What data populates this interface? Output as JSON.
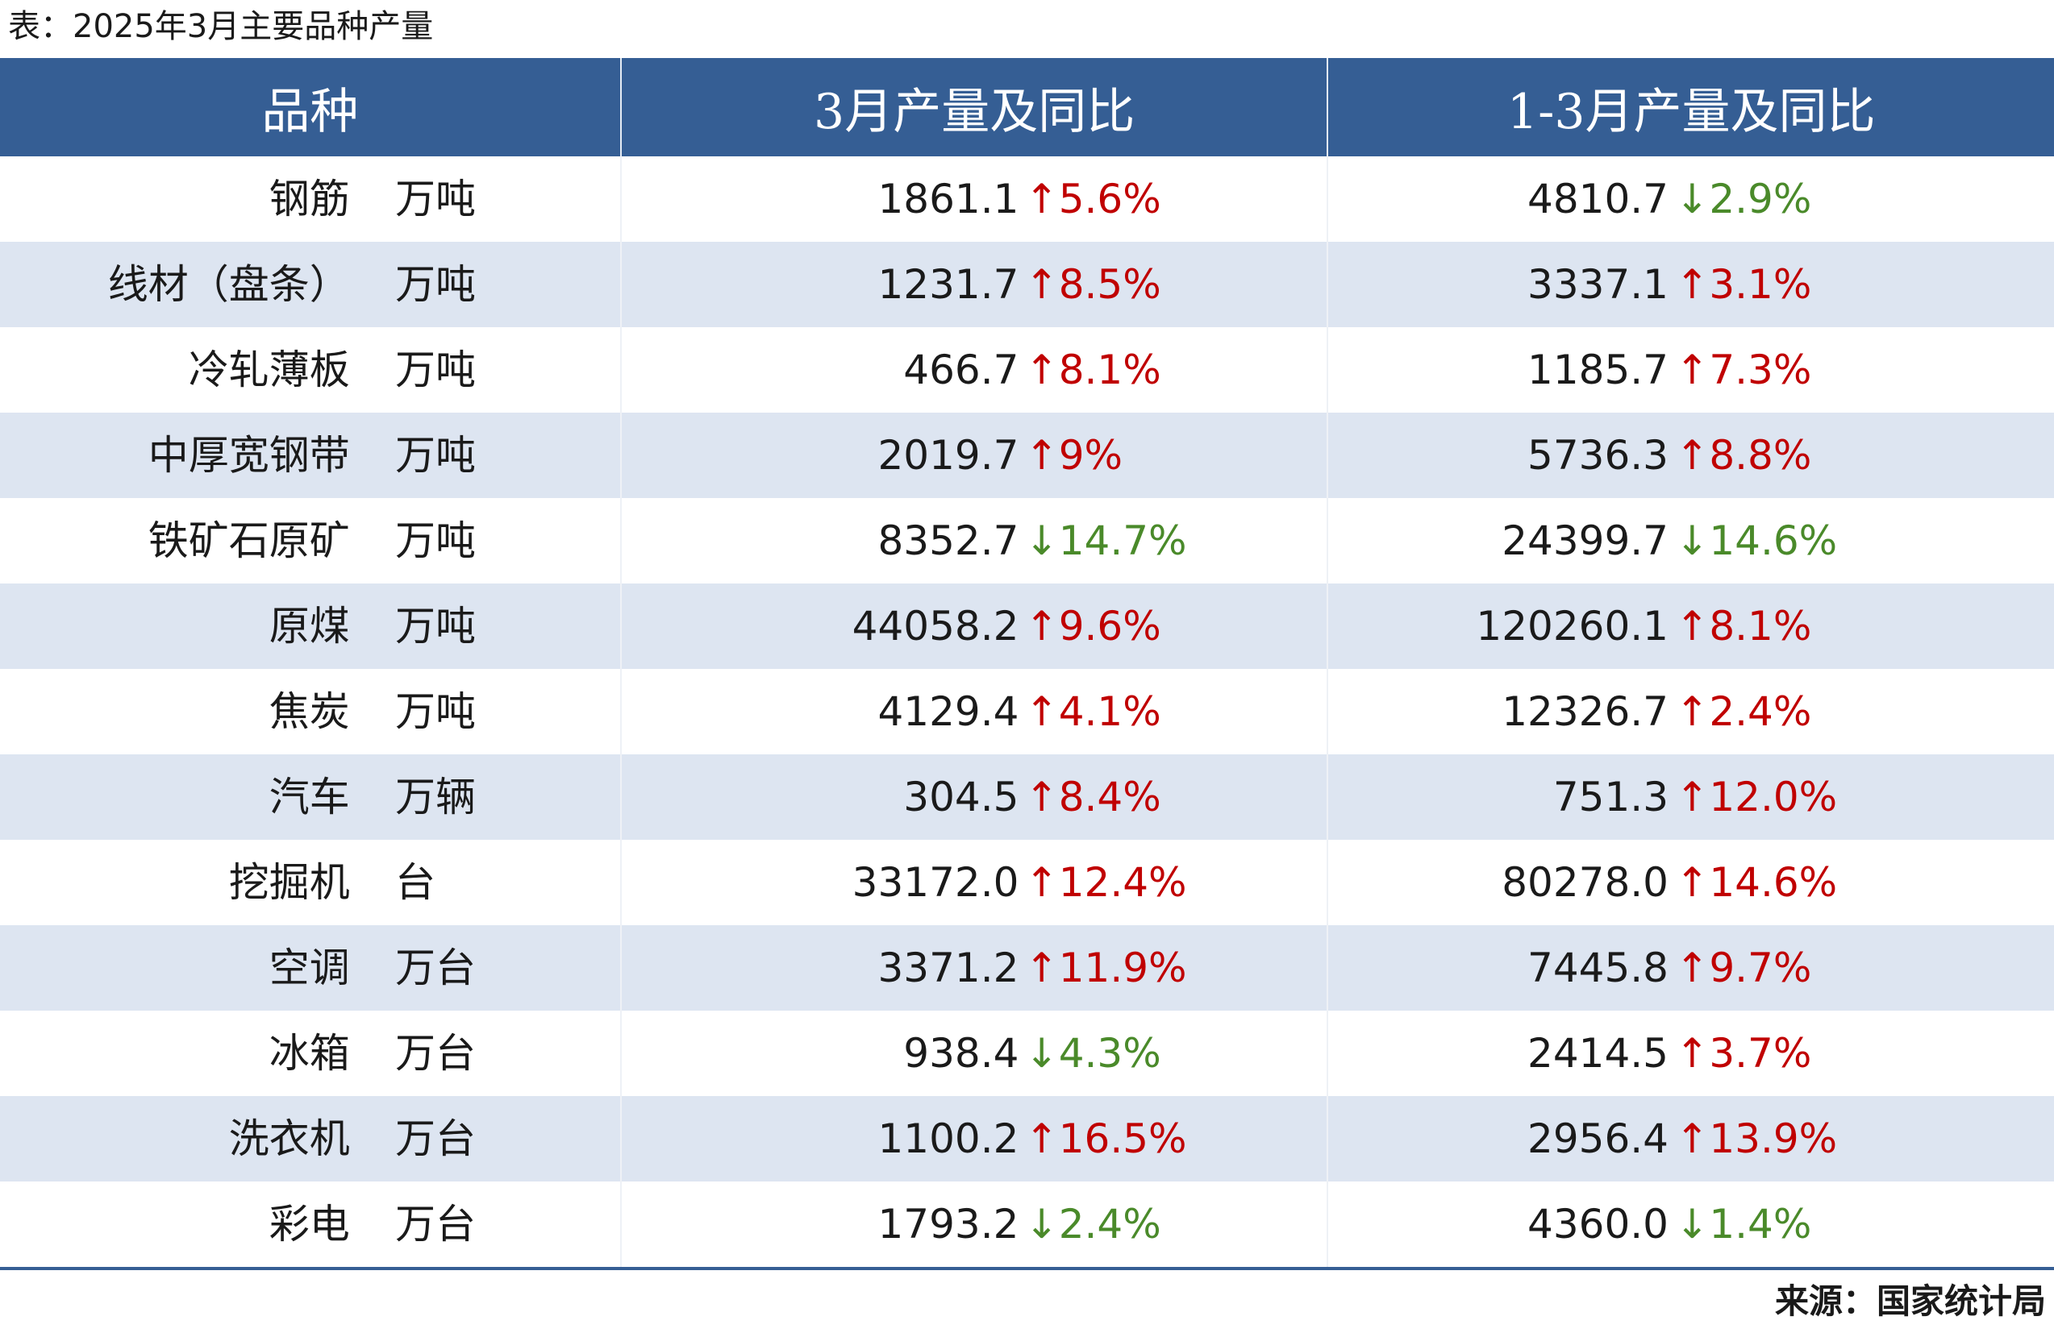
{
  "caption": "表：2025年3月主要品种产量",
  "header": {
    "col1": "品种",
    "col2": "3月产量及同比",
    "col3": "1-3月产量及同比"
  },
  "rows": [
    {
      "name": "钢筋",
      "unit": "万吨",
      "m3_value": "1861.1",
      "m3_change": "5.6%",
      "m3_dir": "up",
      "q1_value": "4810.7",
      "q1_change": "2.9%",
      "q1_dir": "down"
    },
    {
      "name": "线材（盘条）",
      "unit": "万吨",
      "m3_value": "1231.7",
      "m3_change": "8.5%",
      "m3_dir": "up",
      "q1_value": "3337.1",
      "q1_change": "3.1%",
      "q1_dir": "up"
    },
    {
      "name": "冷轧薄板",
      "unit": "万吨",
      "m3_value": "466.7",
      "m3_change": "8.1%",
      "m3_dir": "up",
      "q1_value": "1185.7",
      "q1_change": "7.3%",
      "q1_dir": "up"
    },
    {
      "name": "中厚宽钢带",
      "unit": "万吨",
      "m3_value": "2019.7",
      "m3_change": "9%",
      "m3_dir": "up",
      "q1_value": "5736.3",
      "q1_change": "8.8%",
      "q1_dir": "up"
    },
    {
      "name": "铁矿石原矿",
      "unit": "万吨",
      "m3_value": "8352.7",
      "m3_change": "14.7%",
      "m3_dir": "down",
      "q1_value": "24399.7",
      "q1_change": "14.6%",
      "q1_dir": "down"
    },
    {
      "name": "原煤",
      "unit": "万吨",
      "m3_value": "44058.2",
      "m3_change": "9.6%",
      "m3_dir": "up",
      "q1_value": "120260.1",
      "q1_change": "8.1%",
      "q1_dir": "up"
    },
    {
      "name": "焦炭",
      "unit": "万吨",
      "m3_value": "4129.4",
      "m3_change": "4.1%",
      "m3_dir": "up",
      "q1_value": "12326.7",
      "q1_change": "2.4%",
      "q1_dir": "up"
    },
    {
      "name": "汽车",
      "unit": "万辆",
      "m3_value": "304.5",
      "m3_change": "8.4%",
      "m3_dir": "up",
      "q1_value": "751.3",
      "q1_change": "12.0%",
      "q1_dir": "up"
    },
    {
      "name": "挖掘机",
      "unit": "台",
      "m3_value": "33172.0",
      "m3_change": "12.4%",
      "m3_dir": "up",
      "q1_value": "80278.0",
      "q1_change": "14.6%",
      "q1_dir": "up"
    },
    {
      "name": "空调",
      "unit": "万台",
      "m3_value": "3371.2",
      "m3_change": "11.9%",
      "m3_dir": "up",
      "q1_value": "7445.8",
      "q1_change": "9.7%",
      "q1_dir": "up"
    },
    {
      "name": "冰箱",
      "unit": "万台",
      "m3_value": "938.4",
      "m3_change": "4.3%",
      "m3_dir": "down",
      "q1_value": "2414.5",
      "q1_change": "3.7%",
      "q1_dir": "up"
    },
    {
      "name": "洗衣机",
      "unit": "万台",
      "m3_value": "1100.2",
      "m3_change": "16.5%",
      "m3_dir": "up",
      "q1_value": "2956.4",
      "q1_change": "13.9%",
      "q1_dir": "up"
    },
    {
      "name": "彩电",
      "unit": "万台",
      "m3_value": "1793.2",
      "m3_change": "2.4%",
      "m3_dir": "down",
      "q1_value": "4360.0",
      "q1_change": "1.4%",
      "q1_dir": "down"
    }
  ],
  "arrows": {
    "up": "↑",
    "down": "↓"
  },
  "colors": {
    "header_bg": "#355e94",
    "stripe": "#dde5f1",
    "up": "#c00000",
    "down": "#4a8a2a"
  },
  "source": "来源：国家统计局"
}
